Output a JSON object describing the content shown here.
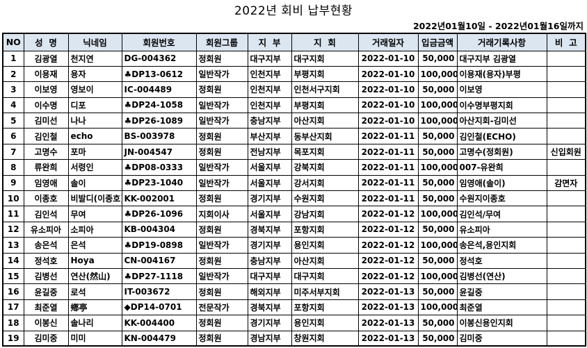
{
  "title": "2022년 회비 납부현황",
  "date_range": "2022년01월10일 - 2022년01월16일까지",
  "colors": {
    "header_bg": "#dce6f1",
    "border": "#000000",
    "background": "#ffffff"
  },
  "table": {
    "headers": [
      "NO",
      "성  명",
      "닉네임",
      "회원번호",
      "회원그룹",
      "지  부",
      "지  회",
      "거래일자",
      "입금금액",
      "거래기록사항",
      "비  고"
    ],
    "rows": [
      [
        "1",
        "김광열",
        "천지연",
        "DG-004362",
        "정회원",
        "대구지부",
        "대구지회",
        "2022-01-10",
        "50,000",
        "대구지부 김광열",
        ""
      ],
      [
        "2",
        "이용재",
        "용자",
        "♣DP13-0612",
        "일반작가",
        "인천지부",
        "부평지회",
        "2022-01-10",
        "100,000",
        "이용재(용자)부평",
        ""
      ],
      [
        "3",
        "이보영",
        "영보이",
        "IC-004489",
        "정회원",
        "인천지부",
        "인천서구지회",
        "2022-01-10",
        "50,000",
        "이보영",
        ""
      ],
      [
        "4",
        "이수명",
        "디포",
        "♣DP24-1058",
        "일반작가",
        "인천지부",
        "부평지회",
        "2022-01-10",
        "100,000",
        "이수명부평지회",
        ""
      ],
      [
        "5",
        "김미선",
        "나나",
        "♣DP26-1089",
        "일반작가",
        "충남지부",
        "아산지회",
        "2022-01-10",
        "100,000",
        "아산지회-김미선",
        ""
      ],
      [
        "6",
        "김인철",
        "echo",
        "BS-003978",
        "정회원",
        "부산지부",
        "동부산지회",
        "2022-01-11",
        "50,000",
        "김인철(ECHO)",
        ""
      ],
      [
        "7",
        "고명수",
        "포마",
        "JN-004547",
        "정회원",
        "전남지부",
        "목포지회",
        "2022-01-11",
        "50,000",
        "고명수(정회원)",
        "신입회원"
      ],
      [
        "8",
        "류완희",
        "서령인",
        "♣DP08-0333",
        "일반작가",
        "서울지부",
        "강북지회",
        "2022-01-11",
        "100,000",
        "007-유완희",
        ""
      ],
      [
        "9",
        "임영애",
        "솔이",
        "♣DP23-1040",
        "일반작가",
        "서울지부",
        "강서지회",
        "2022-01-11",
        "50,000",
        "임영애(솔이)",
        "감면자"
      ],
      [
        "10",
        "이종호",
        "비발디(이종호)",
        "KK-002001",
        "정회원",
        "경기지부",
        "수원지회",
        "2022-01-11",
        "50,000",
        "수원지이종호",
        ""
      ],
      [
        "11",
        "김인석",
        "무여",
        "♣DP26-1096",
        "지회이사",
        "서울지부",
        "강남지회",
        "2022-01-12",
        "100,000",
        "김인석/무여",
        ""
      ],
      [
        "12",
        "유소피아",
        "소피아",
        "KB-004304",
        "정회원",
        "경북지부",
        "포항지회",
        "2022-01-12",
        "50,000",
        "유소피아",
        ""
      ],
      [
        "13",
        "송은석",
        "은석",
        "♣DP19-0898",
        "일반작가",
        "경기지부",
        "용인지회",
        "2022-01-12",
        "100,000",
        "송은석,용인지회",
        ""
      ],
      [
        "14",
        "정석호",
        "Hoya",
        "CN-004167",
        "정회원",
        "충남지부",
        "아산지회",
        "2022-01-12",
        "50,000",
        "정석호",
        ""
      ],
      [
        "15",
        "김병선",
        "연산(然山)",
        "♣DP27-1118",
        "일반작가",
        "대구지부",
        "대구지회",
        "2022-01-12",
        "100,000",
        "김병선(연산)",
        ""
      ],
      [
        "16",
        "윤길중",
        "로석",
        "IT-003672",
        "정회원",
        "해외지부",
        "미주서부지회",
        "2022-01-13",
        "50,000",
        "윤길중",
        ""
      ],
      [
        "17",
        "최준열",
        "鄕亭",
        "◆DP14-0701",
        "전문작가",
        "경북지부",
        "포항지회",
        "2022-01-13",
        "100,000",
        "최준열",
        ""
      ],
      [
        "18",
        "이봉신",
        "솔나리",
        "KK-004400",
        "정회원",
        "경기지부",
        "용인지회",
        "2022-01-13",
        "50,000",
        "이봉신용인지회",
        ""
      ],
      [
        "19",
        "김미중",
        "미미",
        "KN-004479",
        "정회원",
        "경남지부",
        "창원지회",
        "2022-01-13",
        "50,000",
        "김미중",
        ""
      ]
    ]
  }
}
